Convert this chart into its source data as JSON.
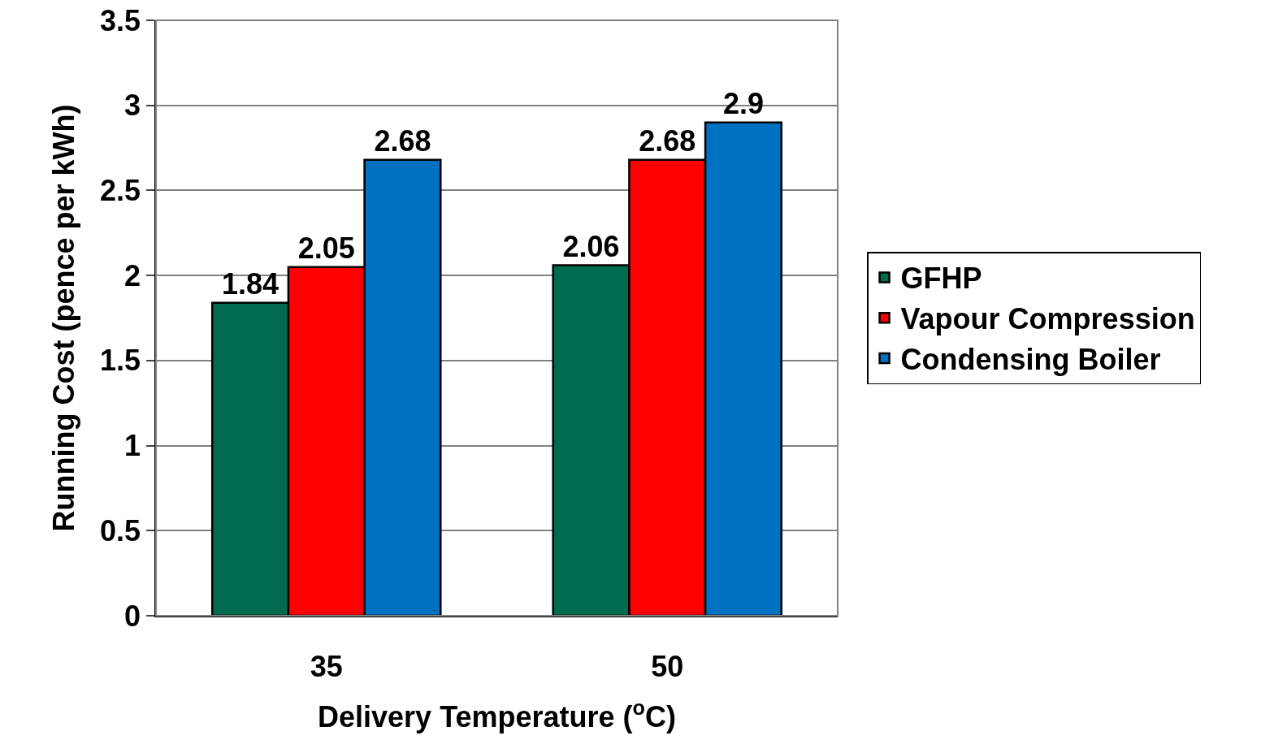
{
  "chart_data": {
    "type": "bar",
    "xlabel": "Delivery Temperature ($^{o}$C)",
    "ylabel": "Running Cost (pence per kWh)",
    "categories": [
      "35",
      "50"
    ],
    "series": [
      {
        "name": "GFHP",
        "color": "#006b4f",
        "values": [
          1.84,
          2.06
        ]
      },
      {
        "name": "Vapour Compression",
        "color": "#ff0000",
        "values": [
          2.05,
          2.68
        ]
      },
      {
        "name": "Condensing Boiler",
        "color": "#0070c0",
        "values": [
          2.68,
          2.9
        ]
      }
    ],
    "ylim": [
      0,
      3.5
    ],
    "yticks": [
      0,
      0.5,
      1,
      1.5,
      2,
      2.5,
      3,
      3.5
    ],
    "grid": "y",
    "legend": "right",
    "data_labels": true
  }
}
